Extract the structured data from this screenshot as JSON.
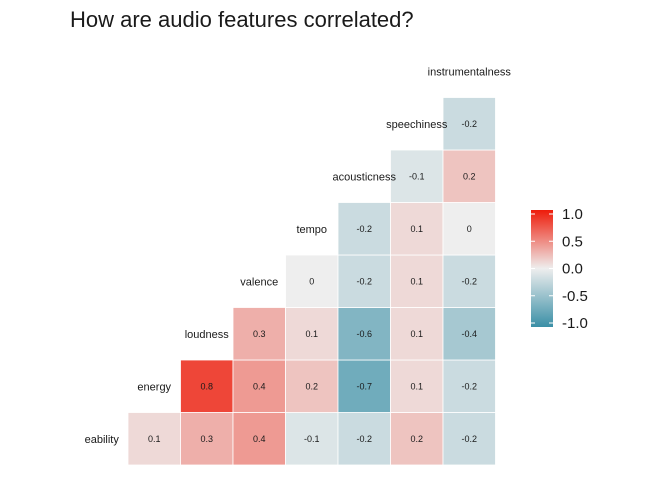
{
  "chart_data": {
    "type": "heatmap",
    "title": "How are audio features correlated?",
    "variables": [
      "danceability",
      "energy",
      "loudness",
      "valence",
      "tempo",
      "acousticness",
      "speechiness",
      "instrumentalness"
    ],
    "visible_row_labels": [
      "eability",
      "energy",
      "loudness",
      "valence",
      "tempo",
      "acousticness",
      "speechiness",
      "instrumentalness"
    ],
    "columns": [
      "energy",
      "loudness",
      "valence",
      "tempo",
      "acousticness",
      "speechiness",
      "instrumentalness"
    ],
    "cells": [
      {
        "row": "danceability",
        "col": "energy",
        "value": 0.1
      },
      {
        "row": "danceability",
        "col": "loudness",
        "value": 0.3
      },
      {
        "row": "danceability",
        "col": "valence",
        "value": 0.4
      },
      {
        "row": "danceability",
        "col": "tempo",
        "value": -0.1
      },
      {
        "row": "danceability",
        "col": "acousticness",
        "value": -0.2
      },
      {
        "row": "danceability",
        "col": "speechiness",
        "value": 0.2
      },
      {
        "row": "danceability",
        "col": "instrumentalness",
        "value": -0.2
      },
      {
        "row": "energy",
        "col": "loudness",
        "value": 0.8
      },
      {
        "row": "energy",
        "col": "valence",
        "value": 0.4
      },
      {
        "row": "energy",
        "col": "tempo",
        "value": 0.2
      },
      {
        "row": "energy",
        "col": "acousticness",
        "value": -0.7
      },
      {
        "row": "energy",
        "col": "speechiness",
        "value": 0.1
      },
      {
        "row": "energy",
        "col": "instrumentalness",
        "value": -0.2
      },
      {
        "row": "loudness",
        "col": "valence",
        "value": 0.3
      },
      {
        "row": "loudness",
        "col": "tempo",
        "value": 0.1
      },
      {
        "row": "loudness",
        "col": "acousticness",
        "value": -0.6
      },
      {
        "row": "loudness",
        "col": "speechiness",
        "value": 0.1
      },
      {
        "row": "loudness",
        "col": "instrumentalness",
        "value": -0.4
      },
      {
        "row": "valence",
        "col": "tempo",
        "value": 0
      },
      {
        "row": "valence",
        "col": "acousticness",
        "value": -0.2
      },
      {
        "row": "valence",
        "col": "speechiness",
        "value": 0.1
      },
      {
        "row": "valence",
        "col": "instrumentalness",
        "value": -0.2
      },
      {
        "row": "tempo",
        "col": "acousticness",
        "value": -0.2
      },
      {
        "row": "tempo",
        "col": "speechiness",
        "value": 0.1
      },
      {
        "row": "tempo",
        "col": "instrumentalness",
        "value": 0
      },
      {
        "row": "acousticness",
        "col": "speechiness",
        "value": -0.1
      },
      {
        "row": "acousticness",
        "col": "instrumentalness",
        "value": 0.2
      },
      {
        "row": "speechiness",
        "col": "instrumentalness",
        "value": -0.2
      }
    ],
    "color_scale": {
      "low": "#3a8fa6",
      "mid": "#eeeeee",
      "high": "#ee1c0a",
      "limits": [
        -1,
        1
      ]
    },
    "legend": {
      "position": "right",
      "ticks": [
        "1.0",
        "0.5",
        "0.0",
        "-0.5",
        "-1.0"
      ],
      "tick_values": [
        1,
        0.5,
        0,
        -0.5,
        -1
      ]
    },
    "grid": false
  }
}
